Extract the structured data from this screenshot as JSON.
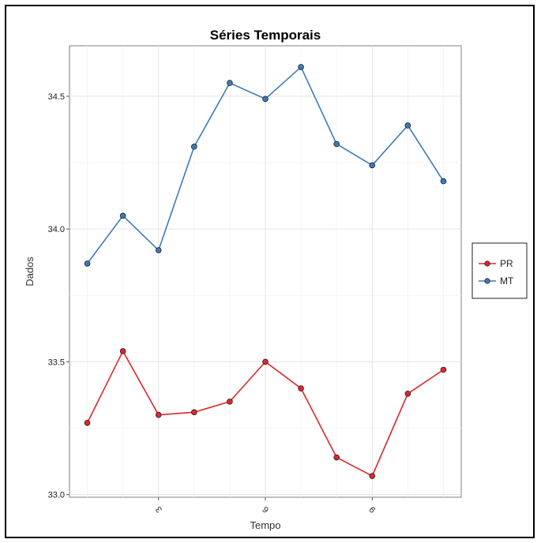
{
  "chart_data": {
    "type": "line",
    "title": "Séries Temporais",
    "xlabel": "Tempo",
    "ylabel": "Dados",
    "x": [
      1,
      2,
      3,
      4,
      5,
      6,
      7,
      8,
      9,
      10,
      11
    ],
    "xlim": [
      0.5,
      11.5
    ],
    "ylim": [
      32.99,
      34.69
    ],
    "x_ticks": [
      3,
      6,
      9
    ],
    "x_tick_labels": [
      "3",
      "6",
      "9"
    ],
    "y_ticks": [
      33.0,
      33.5,
      34.0,
      34.5
    ],
    "y_tick_labels": [
      "33.0",
      "33.5",
      "34.0",
      "34.5"
    ],
    "grid": true,
    "legend_position": "right",
    "series": [
      {
        "name": "PR",
        "color": "#e0262b",
        "values": [
          33.27,
          33.54,
          33.3,
          33.31,
          33.35,
          33.5,
          33.4,
          33.14,
          33.07,
          33.38,
          33.47
        ]
      },
      {
        "name": "MT",
        "color": "#3d7ab8",
        "values": [
          33.87,
          34.05,
          33.92,
          34.31,
          34.55,
          34.49,
          34.61,
          34.32,
          34.24,
          34.39,
          34.18
        ]
      }
    ]
  }
}
